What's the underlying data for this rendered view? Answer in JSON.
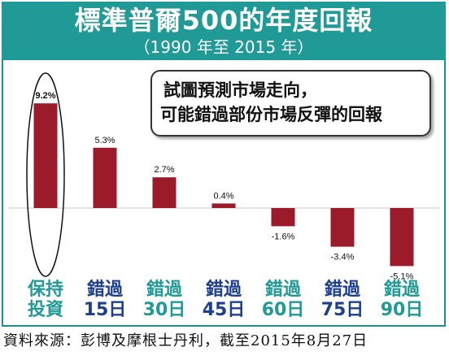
{
  "header": {
    "title": "標準普爾500的年度回報",
    "subtitle": "（1990 年至 2015 年）"
  },
  "callout": {
    "line1": "試圖預測市場走向，",
    "line2": "可能錯過部份市場反彈的回報"
  },
  "source": "資料來源：彭博及摩根士丹利，截至2015年8月27日",
  "colors": {
    "header_bg": "#1f9a97",
    "bar": "#9b1b2a",
    "teal_label": "#1f9a97",
    "blue_label": "#1d3f8f"
  },
  "chart_data": {
    "type": "bar",
    "categories": [
      [
        "保持",
        "投資"
      ],
      [
        "錯過",
        "15日"
      ],
      [
        "錯過",
        "30日"
      ],
      [
        "錯過",
        "45日"
      ],
      [
        "錯過",
        "60日"
      ],
      [
        "錯過",
        "75日"
      ],
      [
        "錯過",
        "90日"
      ]
    ],
    "category_colors": [
      "teal",
      "blue",
      "teal",
      "blue",
      "teal",
      "blue",
      "teal"
    ],
    "values": [
      9.2,
      5.3,
      2.7,
      0.4,
      -1.6,
      -3.4,
      -5.1
    ],
    "data_labels": [
      "9.2%",
      "5.3%",
      "2.7%",
      "0.4%",
      "-1.6%",
      "-3.4%",
      "-5.1%"
    ],
    "highlighted_index": 0,
    "grid": false
  }
}
